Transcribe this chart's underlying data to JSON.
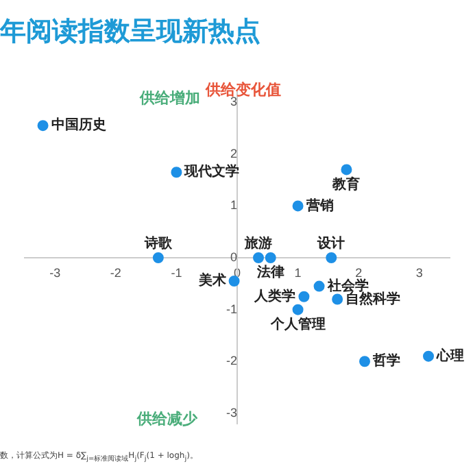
{
  "chart_data": {
    "type": "scatter",
    "title": "年阅读指数呈现新热点",
    "ylabel": "供给变化值",
    "annotations": [
      "供给增加",
      "供给减少",
      "数，计算公式为H = δ∑$_{j=标准阅读域}$H$_{j}$(F$_{j}$(1 + logh$_{j}$)。"
    ],
    "xlim": [
      -3.5,
      3.5
    ],
    "xticks": [
      -3,
      -2,
      -1,
      0,
      1,
      2,
      3
    ],
    "ylim": [
      -3.2,
      3.2
    ],
    "yticks": [
      -3,
      -2,
      -1,
      0,
      1,
      2,
      3
    ],
    "grid": false,
    "legend": false,
    "marker": "circle",
    "series": [
      {
        "name": "中国历史",
        "color": "#1e90e6",
        "x": [
          -3.2
        ],
        "values": [
          2.55
        ]
      },
      {
        "name": "现代文学",
        "color": "#1e90e6",
        "x": [
          -1.0
        ],
        "values": [
          1.65
        ]
      },
      {
        "name": "教育",
        "color": "#1e90e6",
        "x": [
          1.8
        ],
        "values": [
          1.7
        ]
      },
      {
        "name": "营销",
        "color": "#1e90e6",
        "x": [
          1.0
        ],
        "values": [
          1.0
        ]
      },
      {
        "name": "诗歌",
        "color": "#1e90e6",
        "x": [
          -1.3
        ],
        "values": [
          0
        ]
      },
      {
        "name": "旅游",
        "color": "#1e90e6",
        "x": [
          0.35
        ],
        "values": [
          0
        ]
      },
      {
        "name": "法律",
        "color": "#1e90e6",
        "x": [
          0.55
        ],
        "values": [
          0
        ]
      },
      {
        "name": "设计",
        "color": "#1e90e6",
        "x": [
          1.55
        ],
        "values": [
          0
        ]
      },
      {
        "name": "美术",
        "color": "#1e90e6",
        "x": [
          -0.05
        ],
        "values": [
          -0.45
        ]
      },
      {
        "name": "社会学",
        "color": "#1e90e6",
        "x": [
          1.35
        ],
        "values": [
          -0.55
        ]
      },
      {
        "name": "人类学",
        "color": "#1e90e6",
        "x": [
          1.1
        ],
        "values": [
          -0.75
        ]
      },
      {
        "name": "自然科学",
        "color": "#1e90e6",
        "x": [
          1.65
        ],
        "values": [
          -0.8
        ]
      },
      {
        "name": "个人管理",
        "color": "#1e90e6",
        "x": [
          1.0
        ],
        "values": [
          -1.0
        ]
      },
      {
        "name": "哲学",
        "color": "#1e90e6",
        "x": [
          2.1
        ],
        "values": [
          -2.0
        ]
      },
      {
        "name": "心理",
        "color": "#1e90e6",
        "x": [
          3.15
        ],
        "values": [
          -1.9
        ]
      }
    ]
  }
}
